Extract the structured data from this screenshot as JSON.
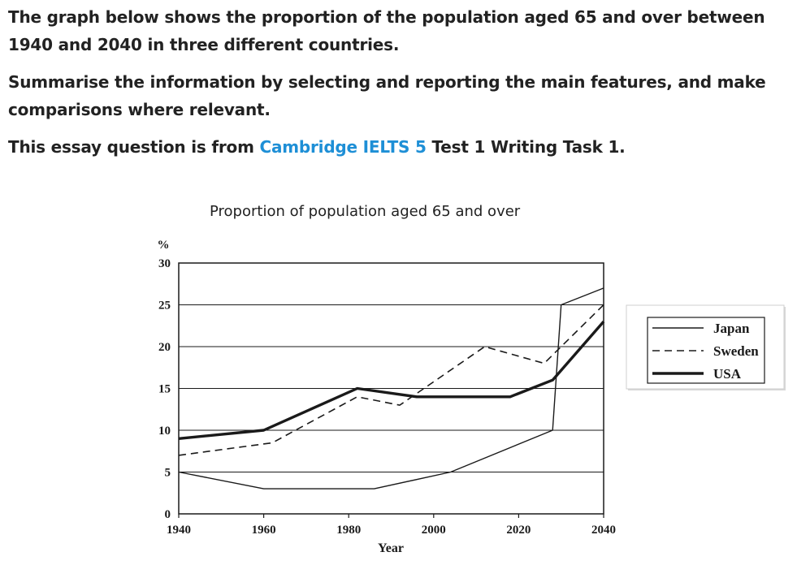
{
  "prompt": {
    "line1": "The graph below shows the proportion of the population aged 65 and over between 1940 and 2040 in three different countries.",
    "line2": "Summarise the information by selecting and reporting the main features, and make comparisons where relevant.",
    "line3_pre": "This essay question is from ",
    "line3_link": "Cambridge IELTS 5",
    "line3_post": " Test 1 Writing Task 1."
  },
  "colors": {
    "link": "#1e8fd6",
    "text": "#222222",
    "lines": "#1a1a1a"
  },
  "chart_data": {
    "type": "line",
    "title": "Proportion of population aged 65 and over",
    "xlabel": "Year",
    "ylabel": "%",
    "xlim": [
      1940,
      2040
    ],
    "ylim": [
      0,
      30
    ],
    "xticks": [
      1940,
      1960,
      1980,
      2000,
      2020,
      2040
    ],
    "yticks": [
      0,
      5,
      10,
      15,
      20,
      25,
      30
    ],
    "grid": "horizontal",
    "legend_position": "right",
    "series": [
      {
        "name": "Japan",
        "style": "thin-solid",
        "points": [
          [
            1940,
            5
          ],
          [
            1960,
            3
          ],
          [
            1986,
            3
          ],
          [
            2004,
            5
          ],
          [
            2028,
            10
          ],
          [
            2030,
            25
          ],
          [
            2040,
            27
          ]
        ]
      },
      {
        "name": "Sweden",
        "style": "dashed",
        "points": [
          [
            1940,
            7
          ],
          [
            1962,
            8.5
          ],
          [
            1982,
            14
          ],
          [
            1992,
            13
          ],
          [
            2012,
            20
          ],
          [
            2026,
            18
          ],
          [
            2040,
            25
          ]
        ]
      },
      {
        "name": "USA",
        "style": "thick-solid",
        "points": [
          [
            1940,
            9
          ],
          [
            1960,
            10
          ],
          [
            1982,
            15
          ],
          [
            1996,
            14
          ],
          [
            2018,
            14
          ],
          [
            2028,
            16
          ],
          [
            2040,
            23
          ]
        ]
      }
    ]
  }
}
